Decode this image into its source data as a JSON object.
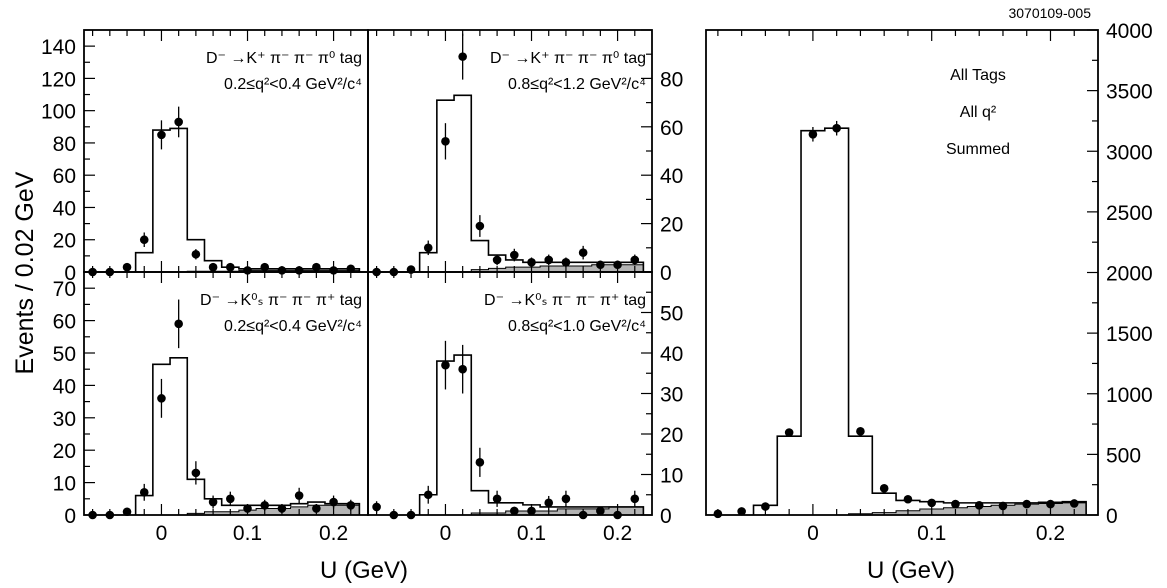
{
  "figure_id": "3070109-005",
  "ylabel": "Events / 0.02 GeV",
  "xlabel": "U (GeV)",
  "chart_data": [
    {
      "type": "histogram",
      "panel": "top-left",
      "labels": [
        "D⁻ →K⁺ π⁻ π⁻ π⁰ tag",
        "0.2≤q²<0.4 GeV²/c⁴"
      ],
      "xlim": [
        -0.09,
        0.24
      ],
      "ylim": [
        0,
        150
      ],
      "yticks": [
        0,
        20,
        40,
        60,
        80,
        100,
        120,
        140
      ],
      "xticks": [],
      "bin_edges": [
        -0.03,
        -0.01,
        0.01,
        0.03,
        0.05,
        0.07,
        0.09,
        0.11,
        0.13,
        0.15,
        0.17,
        0.19,
        0.21,
        0.23
      ],
      "signal_mc": [
        12,
        88,
        89,
        20,
        7,
        3,
        2,
        2,
        2,
        2,
        2,
        2,
        2
      ],
      "background_mc": [
        0,
        0,
        0,
        0.5,
        0.5,
        0.5,
        1,
        1,
        1,
        1,
        1,
        1,
        1
      ],
      "data_x": [
        -0.08,
        -0.06,
        -0.04,
        -0.02,
        0.0,
        0.02,
        0.04,
        0.06,
        0.08,
        0.1,
        0.12,
        0.14,
        0.16,
        0.18,
        0.2,
        0.22
      ],
      "data_y": [
        0,
        0,
        3,
        20,
        85,
        93,
        11,
        3,
        3,
        1,
        3,
        1,
        1,
        3,
        1,
        2
      ],
      "data_err": [
        0,
        0,
        1.5,
        4.5,
        9,
        9.5,
        3.2,
        1.5,
        1.5,
        1,
        1.5,
        1,
        1,
        1.5,
        1,
        1.2
      ]
    },
    {
      "type": "histogram",
      "panel": "top-middle",
      "labels": [
        "D⁻ →K⁺ π⁻ π⁻ π⁰ tag",
        "0.8≤q²<1.2 GeV²/c⁴"
      ],
      "xlim": [
        -0.09,
        0.24
      ],
      "ylim": [
        0,
        100
      ],
      "yticks": [
        0,
        20,
        40,
        60,
        80
      ],
      "xticks": [],
      "bin_edges": [
        -0.03,
        -0.01,
        0.01,
        0.03,
        0.05,
        0.07,
        0.09,
        0.11,
        0.13,
        0.15,
        0.17,
        0.19,
        0.21,
        0.23
      ],
      "signal_mc": [
        8,
        71,
        73,
        13,
        7,
        5,
        4,
        4,
        4,
        4,
        4,
        4,
        4
      ],
      "background_mc": [
        0,
        0,
        0,
        1,
        1.5,
        2,
        2,
        2.5,
        2.5,
        2.5,
        3,
        3,
        3
      ],
      "data_x": [
        -0.08,
        -0.06,
        -0.04,
        -0.02,
        0.0,
        0.02,
        0.04,
        0.06,
        0.08,
        0.1,
        0.12,
        0.14,
        0.16,
        0.18,
        0.2,
        0.22
      ],
      "data_y": [
        0,
        0,
        1,
        10,
        54,
        89,
        19,
        5,
        7,
        4,
        5,
        4,
        8,
        3,
        3,
        5
      ],
      "data_err": [
        0,
        0,
        1,
        3,
        7.5,
        9.5,
        4.5,
        2.2,
        2.6,
        2,
        2.2,
        2,
        2.8,
        1.7,
        1.7,
        2.2
      ]
    },
    {
      "type": "histogram",
      "panel": "bottom-left",
      "labels": [
        "D⁻ →K⁰ₛ π⁻ π⁻ π⁺ tag",
        "0.2≤q²<0.4 GeV²/c⁴"
      ],
      "xlim": [
        -0.09,
        0.24
      ],
      "ylim": [
        0,
        75
      ],
      "yticks": [
        0,
        10,
        20,
        30,
        40,
        50,
        60,
        70
      ],
      "xticks": [
        0,
        0.1,
        0.2
      ],
      "bin_edges": [
        -0.03,
        -0.01,
        0.01,
        0.03,
        0.05,
        0.07,
        0.09,
        0.11,
        0.13,
        0.15,
        0.17,
        0.19,
        0.21,
        0.23
      ],
      "signal_mc": [
        6,
        46.5,
        48.5,
        11,
        5,
        3,
        3,
        3,
        3,
        3.5,
        4,
        3.5,
        3.5
      ],
      "background_mc": [
        0,
        0,
        0,
        0.5,
        1,
        1,
        1.5,
        2,
        2,
        2.5,
        3,
        3,
        3
      ],
      "data_x": [
        -0.08,
        -0.06,
        -0.04,
        -0.02,
        0.0,
        0.02,
        0.04,
        0.06,
        0.08,
        0.1,
        0.12,
        0.14,
        0.16,
        0.18,
        0.2,
        0.22
      ],
      "data_y": [
        0,
        0,
        1,
        7,
        36,
        59,
        13,
        4,
        5,
        2,
        3,
        2,
        6,
        2,
        4,
        3
      ],
      "data_err": [
        0,
        0,
        1,
        2.6,
        6,
        7.5,
        3.6,
        2,
        2.2,
        1.4,
        1.7,
        1.4,
        2.4,
        1.4,
        2,
        1.7
      ]
    },
    {
      "type": "histogram",
      "panel": "bottom-middle",
      "labels": [
        "D⁻ →K⁰ₛ π⁻ π⁻ π⁺ tag",
        "0.8≤q²<1.0 GeV²/c⁴"
      ],
      "xlim": [
        -0.09,
        0.24
      ],
      "ylim": [
        0,
        60
      ],
      "yticks": [
        0,
        10,
        20,
        30,
        40,
        50
      ],
      "xticks": [
        0,
        0.1,
        0.2
      ],
      "bin_edges": [
        -0.03,
        -0.01,
        0.01,
        0.03,
        0.05,
        0.07,
        0.09,
        0.11,
        0.13,
        0.15,
        0.17,
        0.19,
        0.21,
        0.23
      ],
      "signal_mc": [
        5,
        38,
        39.5,
        6,
        3,
        3,
        2.5,
        2,
        2,
        2,
        2,
        2,
        2
      ],
      "background_mc": [
        0,
        0,
        0,
        0.5,
        0.5,
        1,
        1,
        1,
        1.5,
        1.5,
        1.5,
        2,
        2
      ],
      "data_x": [
        -0.08,
        -0.06,
        -0.04,
        -0.02,
        0.0,
        0.02,
        0.04,
        0.06,
        0.08,
        0.1,
        0.12,
        0.14,
        0.16,
        0.18,
        0.2,
        0.22
      ],
      "data_y": [
        2,
        0,
        0,
        5,
        37,
        36,
        13,
        4,
        1,
        1,
        3,
        4,
        0,
        1,
        0,
        4
      ],
      "data_err": [
        1.4,
        0,
        0,
        2.2,
        6,
        6,
        3.6,
        2,
        1,
        1,
        1.7,
        2,
        0,
        1,
        0,
        2
      ]
    },
    {
      "type": "histogram",
      "panel": "right",
      "labels": [
        "All Tags",
        "All q²",
        "Summed"
      ],
      "xlim": [
        -0.09,
        0.24
      ],
      "ylim": [
        0,
        4000
      ],
      "yticks": [
        0,
        500,
        1000,
        1500,
        2000,
        2500,
        3000,
        3500,
        4000
      ],
      "xticks": [
        0,
        0.1,
        0.2
      ],
      "bin_edges": [
        -0.05,
        -0.03,
        -0.01,
        0.01,
        0.03,
        0.05,
        0.07,
        0.09,
        0.11,
        0.13,
        0.15,
        0.17,
        0.19,
        0.21,
        0.23
      ],
      "signal_mc": [
        80,
        650,
        3170,
        3190,
        650,
        180,
        120,
        110,
        100,
        100,
        100,
        100,
        105,
        110
      ],
      "background_mc": [
        0,
        0,
        0,
        0,
        10,
        20,
        35,
        50,
        60,
        70,
        80,
        90,
        95,
        100
      ],
      "data_x": [
        -0.08,
        -0.06,
        -0.04,
        -0.02,
        0.0,
        0.02,
        0.04,
        0.06,
        0.08,
        0.1,
        0.12,
        0.14,
        0.16,
        0.18,
        0.2,
        0.22
      ],
      "data_y": [
        10,
        30,
        70,
        680,
        3140,
        3190,
        690,
        220,
        130,
        100,
        90,
        80,
        75,
        90,
        90,
        95
      ],
      "data_err": [
        4,
        7,
        10,
        30,
        60,
        60,
        30,
        15,
        12,
        10,
        10,
        9,
        9,
        10,
        10,
        10
      ]
    }
  ]
}
